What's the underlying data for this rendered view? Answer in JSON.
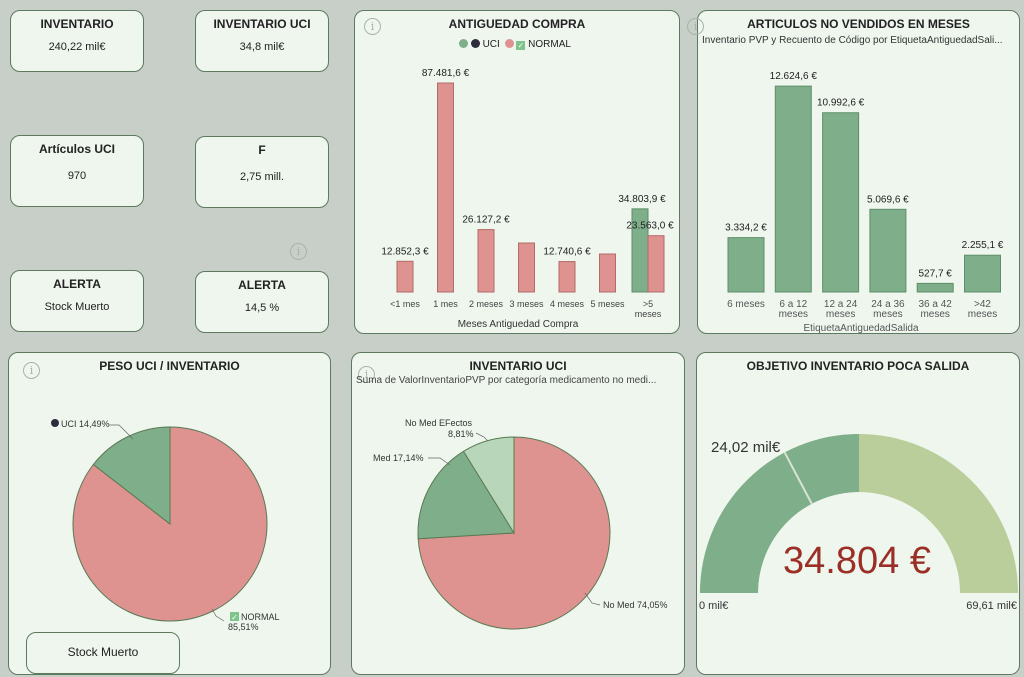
{
  "kpis": {
    "inventario": {
      "title": "INVENTARIO",
      "value": "240,22 mil€"
    },
    "inventario_uci": {
      "title": "INVENTARIO UCI",
      "value": "34,8 mil€"
    },
    "articulos_uci": {
      "title": "Artículos UCI",
      "value": "970"
    },
    "f": {
      "title": "F",
      "value": "2,75 mill."
    },
    "alerta1": {
      "title": "ALERTA",
      "value": "Stock Muerto"
    },
    "alerta2": {
      "title": "ALERTA",
      "value": "14,5 %"
    }
  },
  "stock_button": "Stock Muerto",
  "colors": {
    "green": "#7fae8a",
    "red": "#de9391",
    "light_green": "#b7d6ba",
    "gauge_light": "#b9ce9a",
    "gauge_value": "#9b2f26",
    "bg": "#c8cec8"
  },
  "icons": {
    "info": "info-icon",
    "legend_uci": "dark-circle-icon",
    "legend_normal": "check-square-icon"
  },
  "antiguedad": {
    "title": "ANTIGUEDAD COMPRA",
    "legend": [
      "UCI",
      "NORMAL"
    ],
    "chart_data": {
      "type": "bar",
      "title": "ANTIGUEDAD COMPRA",
      "xlabel": "Meses Antiguedad Compra",
      "categories": [
        "<1 mes",
        "1 mes",
        "2 meses",
        "3 meses",
        "4 meses",
        "5 meses",
        ">5 meses"
      ],
      "series": [
        {
          "name": "UCI",
          "values": [
            null,
            null,
            null,
            null,
            null,
            null,
            34803.9
          ]
        },
        {
          "name": "NORMAL",
          "values": [
            12852.3,
            87481.6,
            26127.2,
            20500,
            12740.6,
            15900,
            23563.0
          ]
        }
      ],
      "labels": [
        "12.852,3 €",
        "87.481,6 €",
        "26.127,2 €",
        "",
        "12.740,6 €",
        "",
        "23.563,0 €"
      ],
      "uci_label": "34.803,9 €",
      "ylim": [
        0,
        90000
      ]
    }
  },
  "no_vendidos": {
    "title": "ARTICULOS NO VENDIDOS EN MESES",
    "subtitle": "Inventario PVP y Recuento de Código por EtiquetaAntiguedadSali...",
    "chart_data": {
      "type": "bar",
      "xlabel": "EtiquetaAntiguedadSalida",
      "categories": [
        "6 meses",
        "6 a 12 meses",
        "12 a 24 meses",
        "24 a 36 meses",
        "36 a 42 meses",
        ">42 meses"
      ],
      "values": [
        3334.2,
        12624.6,
        10992.6,
        5069.6,
        527.7,
        2255.1
      ],
      "labels": [
        "3.334,2 €",
        "12.624,6 €",
        "10.992,6 €",
        "5.069,6 €",
        "527,7 €",
        "2.255,1 €"
      ],
      "ylim": [
        0,
        13000
      ]
    }
  },
  "peso_uci": {
    "title": "PESO UCI / INVENTARIO",
    "chart_data": {
      "type": "pie",
      "slices": [
        {
          "name": "UCI",
          "value": 14.49,
          "label": "UCI 14,49%"
        },
        {
          "name": "NORMAL",
          "value": 85.51,
          "label_name": "NORMAL",
          "label_value": "85,51%"
        }
      ]
    }
  },
  "inventario_uci_pie": {
    "title": "INVENTARIO UCI",
    "subtitle": "Suma de ValorInventarioPVP por categoría medicamento no medi...",
    "chart_data": {
      "type": "pie",
      "slices": [
        {
          "name": "No Med EFectos",
          "value": 8.81,
          "label_name": "No Med EFectos",
          "label_value": "8,81%"
        },
        {
          "name": "No Med",
          "value": 74.05,
          "label": "No Med 74,05%"
        },
        {
          "name": "Med",
          "value": 17.14,
          "label": "Med 17,14%"
        }
      ]
    }
  },
  "objetivo": {
    "title": "OBJETIVO INVENTARIO POCA SALIDA",
    "value_text": "34.804 €",
    "target_text": "24,02 mil€",
    "min_text": "0 mil€",
    "max_text": "69,61 mil€",
    "chart_data": {
      "type": "gauge",
      "value": 34804,
      "target": 24020,
      "min": 0,
      "max": 69610
    }
  }
}
